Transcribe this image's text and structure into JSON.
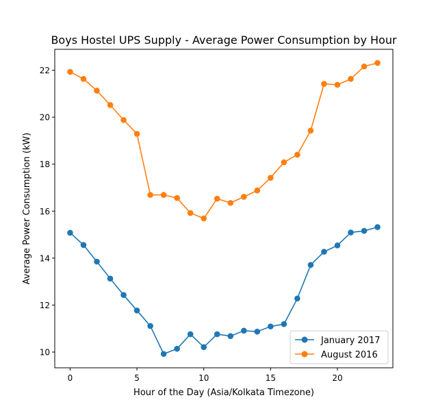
{
  "chart_data": {
    "type": "line",
    "title": "Boys Hostel UPS Supply - Average Power Consumption by Hour",
    "xlabel": "Hour of the Day (Asia/Kolkata Timezone)",
    "ylabel": "Average Power Consumption (kW)",
    "x": [
      0,
      1,
      2,
      3,
      4,
      5,
      6,
      7,
      8,
      9,
      10,
      11,
      12,
      13,
      14,
      15,
      16,
      17,
      18,
      19,
      20,
      21,
      22,
      23
    ],
    "xlim": [
      -1.15,
      24.15
    ],
    "ylim": [
      9.33,
      22.89
    ],
    "xticks": [
      0,
      5,
      10,
      15,
      20
    ],
    "xtick_labels": [
      "0",
      "5",
      "10",
      "15",
      "20"
    ],
    "yticks": [
      10,
      12,
      14,
      16,
      18,
      20,
      22
    ],
    "ytick_labels": [
      "10",
      "12",
      "14",
      "16",
      "18",
      "20",
      "22"
    ],
    "grid": false,
    "legend_position": "lower-right",
    "series": [
      {
        "name": "January 2017",
        "color": "#1f77b4",
        "marker": "circle",
        "values": [
          15.08,
          14.56,
          13.85,
          13.13,
          12.43,
          11.77,
          11.11,
          9.92,
          10.14,
          10.76,
          10.21,
          10.76,
          10.68,
          10.91,
          10.87,
          11.09,
          11.19,
          12.28,
          13.71,
          14.27,
          14.54,
          15.09,
          15.16,
          15.32
        ]
      },
      {
        "name": "August 2016",
        "color": "#ff7f0e",
        "marker": "circle",
        "values": [
          21.93,
          21.63,
          21.13,
          20.52,
          19.88,
          19.29,
          16.69,
          16.69,
          16.56,
          15.92,
          15.69,
          16.53,
          16.35,
          16.61,
          16.88,
          17.42,
          18.08,
          18.4,
          19.43,
          21.42,
          21.38,
          21.63,
          22.16,
          22.31
        ]
      }
    ]
  }
}
